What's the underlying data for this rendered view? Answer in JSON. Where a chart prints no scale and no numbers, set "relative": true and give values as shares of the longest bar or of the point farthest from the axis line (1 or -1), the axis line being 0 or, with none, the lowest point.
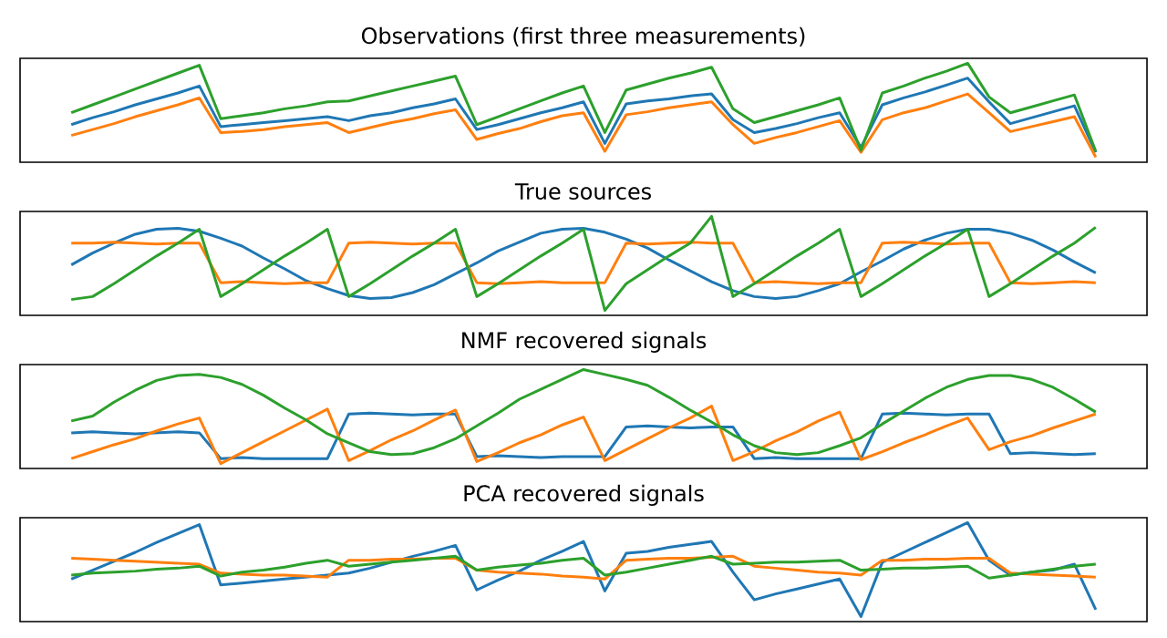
{
  "chart_data": [
    {
      "type": "line",
      "title": "Observations (first three measurements)",
      "relative": true,
      "tick_labels": false,
      "categories": [
        null,
        null,
        null,
        null,
        null,
        null,
        null,
        null,
        null,
        null,
        null,
        null,
        null,
        null,
        null,
        null,
        null,
        null,
        null,
        null,
        null,
        null,
        null,
        null,
        null,
        null,
        null,
        null,
        null,
        null,
        null,
        null,
        null,
        null,
        null,
        null,
        null,
        null,
        null,
        null,
        null,
        null,
        null,
        null,
        null,
        null,
        null,
        null,
        null
      ],
      "series": [
        {
          "color": "#1f77b4",
          "values": [
            0.38,
            0.45,
            0.51,
            0.58,
            0.64,
            0.7,
            0.77,
            0.36,
            0.38,
            0.4,
            0.42,
            0.44,
            0.46,
            0.42,
            0.47,
            0.5,
            0.55,
            0.59,
            0.64,
            0.33,
            0.38,
            0.44,
            0.5,
            0.55,
            0.61,
            0.19,
            0.59,
            0.62,
            0.64,
            0.67,
            0.69,
            0.43,
            0.3,
            0.34,
            0.39,
            0.45,
            0.5,
            0.15,
            0.58,
            0.65,
            0.71,
            0.78,
            0.85,
            0.61,
            0.39,
            0.45,
            0.51,
            0.57,
            0.1
          ]
        },
        {
          "color": "#ff7f0e",
          "values": [
            0.27,
            0.33,
            0.39,
            0.46,
            0.52,
            0.58,
            0.65,
            0.3,
            0.31,
            0.33,
            0.36,
            0.38,
            0.4,
            0.3,
            0.35,
            0.4,
            0.44,
            0.49,
            0.53,
            0.23,
            0.29,
            0.34,
            0.41,
            0.47,
            0.5,
            0.11,
            0.48,
            0.51,
            0.55,
            0.58,
            0.61,
            0.38,
            0.19,
            0.25,
            0.3,
            0.36,
            0.42,
            0.1,
            0.43,
            0.5,
            0.55,
            0.62,
            0.69,
            0.5,
            0.31,
            0.36,
            0.41,
            0.46,
            0.05
          ]
        },
        {
          "color": "#2ca02c",
          "values": [
            0.5,
            0.58,
            0.66,
            0.74,
            0.82,
            0.9,
            0.98,
            0.44,
            0.47,
            0.5,
            0.54,
            0.57,
            0.61,
            0.62,
            0.67,
            0.72,
            0.77,
            0.82,
            0.87,
            0.38,
            0.46,
            0.54,
            0.62,
            0.7,
            0.77,
            0.3,
            0.73,
            0.79,
            0.85,
            0.9,
            0.96,
            0.54,
            0.4,
            0.46,
            0.52,
            0.58,
            0.65,
            0.12,
            0.7,
            0.77,
            0.85,
            0.92,
            1.0,
            0.66,
            0.5,
            0.56,
            0.62,
            0.68,
            0.11
          ]
        }
      ]
    },
    {
      "type": "line",
      "title": "True sources",
      "relative": true,
      "tick_labels": false,
      "categories": [
        null,
        null,
        null,
        null,
        null,
        null,
        null,
        null,
        null,
        null,
        null,
        null,
        null,
        null,
        null,
        null,
        null,
        null,
        null,
        null,
        null,
        null,
        null,
        null,
        null,
        null,
        null,
        null,
        null,
        null,
        null,
        null,
        null,
        null,
        null,
        null,
        null,
        null,
        null,
        null,
        null,
        null,
        null,
        null,
        null,
        null,
        null,
        null,
        null
      ],
      "series": [
        {
          "color": "#1f77b4",
          "values": [
            0.51,
            0.63,
            0.73,
            0.82,
            0.87,
            0.88,
            0.85,
            0.78,
            0.7,
            0.58,
            0.47,
            0.35,
            0.27,
            0.2,
            0.17,
            0.18,
            0.23,
            0.31,
            0.42,
            0.53,
            0.65,
            0.74,
            0.83,
            0.87,
            0.88,
            0.84,
            0.77,
            0.68,
            0.56,
            0.45,
            0.34,
            0.25,
            0.19,
            0.17,
            0.19,
            0.25,
            0.32,
            0.44,
            0.55,
            0.67,
            0.76,
            0.83,
            0.87,
            0.87,
            0.83,
            0.76,
            0.66,
            0.54,
            0.43
          ]
        },
        {
          "color": "#ff7f0e",
          "values": [
            0.73,
            0.73,
            0.74,
            0.73,
            0.72,
            0.73,
            0.73,
            0.33,
            0.34,
            0.33,
            0.32,
            0.33,
            0.33,
            0.73,
            0.74,
            0.73,
            0.72,
            0.73,
            0.73,
            0.33,
            0.32,
            0.33,
            0.34,
            0.33,
            0.33,
            0.33,
            0.73,
            0.72,
            0.73,
            0.74,
            0.73,
            0.73,
            0.33,
            0.34,
            0.33,
            0.32,
            0.33,
            0.33,
            0.73,
            0.74,
            0.73,
            0.72,
            0.73,
            0.73,
            0.33,
            0.32,
            0.33,
            0.34,
            0.33
          ]
        },
        {
          "color": "#2ca02c",
          "values": [
            0.16,
            0.19,
            0.32,
            0.46,
            0.6,
            0.73,
            0.87,
            0.19,
            0.32,
            0.46,
            0.6,
            0.73,
            0.87,
            0.19,
            0.32,
            0.46,
            0.6,
            0.73,
            0.87,
            0.19,
            0.32,
            0.46,
            0.6,
            0.73,
            0.87,
            0.05,
            0.32,
            0.46,
            0.6,
            0.73,
            1.0,
            0.19,
            0.32,
            0.46,
            0.6,
            0.73,
            0.87,
            0.19,
            0.32,
            0.46,
            0.6,
            0.73,
            0.87,
            0.19,
            0.32,
            0.46,
            0.6,
            0.73,
            0.89
          ]
        }
      ]
    },
    {
      "type": "line",
      "title": "NMF recovered signals",
      "relative": true,
      "tick_labels": false,
      "categories": [
        null,
        null,
        null,
        null,
        null,
        null,
        null,
        null,
        null,
        null,
        null,
        null,
        null,
        null,
        null,
        null,
        null,
        null,
        null,
        null,
        null,
        null,
        null,
        null,
        null,
        null,
        null,
        null,
        null,
        null,
        null,
        null,
        null,
        null,
        null,
        null,
        null,
        null,
        null,
        null,
        null,
        null,
        null,
        null,
        null,
        null,
        null,
        null,
        null
      ],
      "series": [
        {
          "color": "#1f77b4",
          "values": [
            0.36,
            0.37,
            0.36,
            0.35,
            0.36,
            0.37,
            0.36,
            0.1,
            0.11,
            0.1,
            0.1,
            0.1,
            0.1,
            0.55,
            0.56,
            0.55,
            0.54,
            0.55,
            0.55,
            0.12,
            0.13,
            0.12,
            0.11,
            0.12,
            0.12,
            0.12,
            0.42,
            0.43,
            0.42,
            0.41,
            0.42,
            0.42,
            0.1,
            0.11,
            0.1,
            0.1,
            0.1,
            0.1,
            0.55,
            0.56,
            0.55,
            0.54,
            0.55,
            0.55,
            0.15,
            0.16,
            0.15,
            0.14,
            0.15
          ]
        },
        {
          "color": "#ff7f0e",
          "values": [
            0.1,
            0.17,
            0.24,
            0.3,
            0.38,
            0.45,
            0.51,
            0.05,
            0.16,
            0.27,
            0.38,
            0.49,
            0.6,
            0.08,
            0.18,
            0.29,
            0.38,
            0.49,
            0.59,
            0.07,
            0.16,
            0.26,
            0.34,
            0.44,
            0.52,
            0.08,
            0.19,
            0.3,
            0.41,
            0.51,
            0.63,
            0.08,
            0.17,
            0.28,
            0.37,
            0.48,
            0.57,
            0.09,
            0.17,
            0.26,
            0.34,
            0.43,
            0.51,
            0.19,
            0.27,
            0.33,
            0.41,
            0.48,
            0.55
          ]
        },
        {
          "color": "#2ca02c",
          "values": [
            0.48,
            0.53,
            0.67,
            0.79,
            0.89,
            0.94,
            0.95,
            0.92,
            0.85,
            0.74,
            0.61,
            0.49,
            0.35,
            0.26,
            0.17,
            0.14,
            0.15,
            0.21,
            0.3,
            0.43,
            0.56,
            0.7,
            0.8,
            0.9,
            1.0,
            0.95,
            0.9,
            0.84,
            0.72,
            0.59,
            0.47,
            0.34,
            0.23,
            0.16,
            0.14,
            0.16,
            0.23,
            0.31,
            0.45,
            0.58,
            0.71,
            0.82,
            0.9,
            0.94,
            0.94,
            0.9,
            0.82,
            0.7,
            0.57
          ]
        }
      ]
    },
    {
      "type": "line",
      "title": "PCA recovered signals",
      "relative": true,
      "tick_labels": false,
      "categories": [
        null,
        null,
        null,
        null,
        null,
        null,
        null,
        null,
        null,
        null,
        null,
        null,
        null,
        null,
        null,
        null,
        null,
        null,
        null,
        null,
        null,
        null,
        null,
        null,
        null,
        null,
        null,
        null,
        null,
        null,
        null,
        null,
        null,
        null,
        null,
        null,
        null,
        null,
        null,
        null,
        null,
        null,
        null,
        null,
        null,
        null,
        null,
        null,
        null
      ],
      "series": [
        {
          "color": "#1f77b4",
          "values": [
            0.43,
            0.52,
            0.61,
            0.7,
            0.8,
            0.89,
            0.98,
            0.37,
            0.39,
            0.41,
            0.43,
            0.45,
            0.47,
            0.49,
            0.54,
            0.6,
            0.66,
            0.71,
            0.77,
            0.32,
            0.42,
            0.51,
            0.62,
            0.71,
            0.81,
            0.31,
            0.69,
            0.71,
            0.75,
            0.78,
            0.81,
            0.5,
            0.22,
            0.28,
            0.33,
            0.38,
            0.43,
            0.05,
            0.6,
            0.7,
            0.8,
            0.9,
            1.0,
            0.62,
            0.47,
            0.5,
            0.52,
            0.58,
            0.12
          ]
        },
        {
          "color": "#ff7f0e",
          "values": [
            0.64,
            0.63,
            0.62,
            0.61,
            0.6,
            0.59,
            0.58,
            0.49,
            0.48,
            0.47,
            0.47,
            0.46,
            0.45,
            0.62,
            0.62,
            0.63,
            0.63,
            0.64,
            0.64,
            0.52,
            0.5,
            0.49,
            0.48,
            0.46,
            0.45,
            0.43,
            0.62,
            0.63,
            0.64,
            0.64,
            0.65,
            0.66,
            0.56,
            0.54,
            0.52,
            0.5,
            0.49,
            0.47,
            0.62,
            0.62,
            0.63,
            0.63,
            0.64,
            0.64,
            0.49,
            0.48,
            0.47,
            0.46,
            0.45
          ]
        },
        {
          "color": "#2ca02c",
          "values": [
            0.47,
            0.49,
            0.5,
            0.51,
            0.53,
            0.54,
            0.56,
            0.46,
            0.5,
            0.52,
            0.55,
            0.59,
            0.62,
            0.56,
            0.58,
            0.6,
            0.62,
            0.64,
            0.66,
            0.52,
            0.55,
            0.57,
            0.59,
            0.62,
            0.64,
            0.47,
            0.5,
            0.54,
            0.58,
            0.62,
            0.66,
            0.58,
            0.59,
            0.6,
            0.6,
            0.61,
            0.62,
            0.52,
            0.53,
            0.54,
            0.54,
            0.55,
            0.56,
            0.44,
            0.47,
            0.5,
            0.53,
            0.56,
            0.58
          ]
        }
      ]
    }
  ]
}
